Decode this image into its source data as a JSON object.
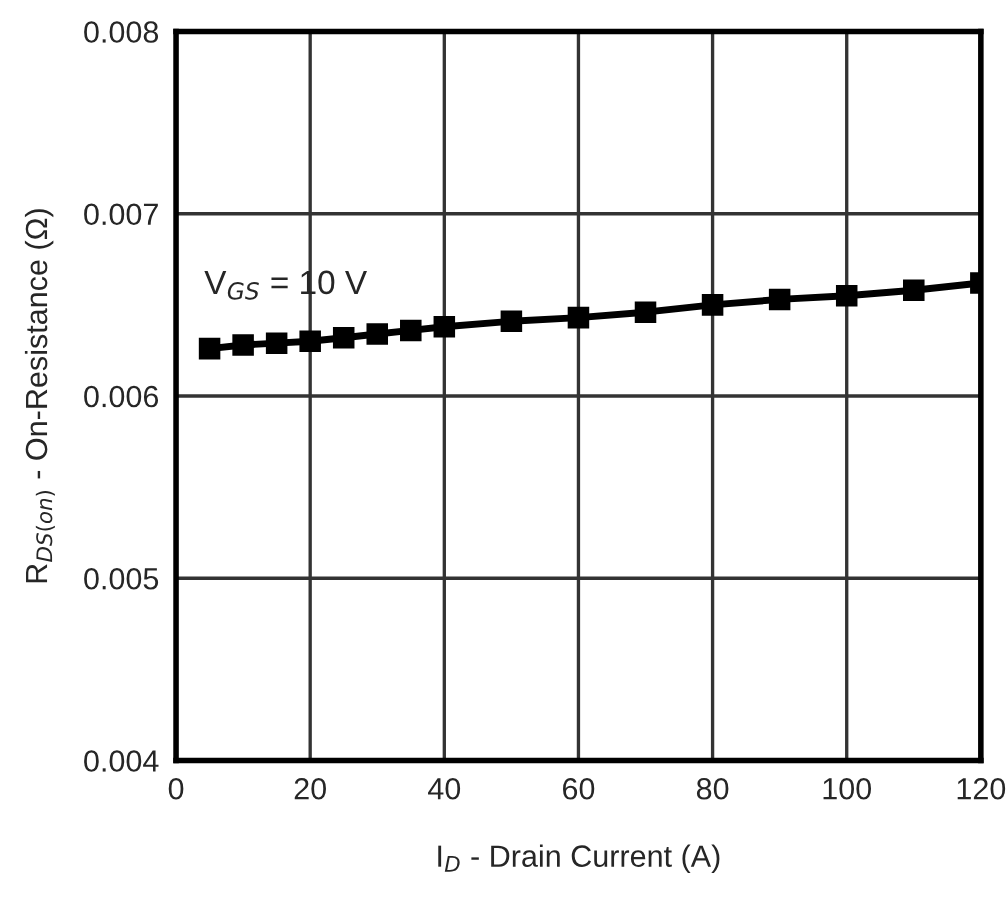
{
  "chart_data": {
    "type": "line",
    "xlabel": "I$_{D}$ - Drain Current (A)",
    "ylabel": "R$_{DS(on)}$ - On-Resistance (Ω)",
    "annotations": [
      "V$_{GS}$ = 10 V"
    ],
    "x": [
      5,
      10,
      15,
      20,
      25,
      30,
      35,
      40,
      50,
      60,
      70,
      80,
      90,
      100,
      110,
      120
    ],
    "series": [
      {
        "color": "#000000",
        "values": [
          0.00626,
          0.00628,
          0.00629,
          0.0063,
          0.00632,
          0.00634,
          0.00636,
          0.00638,
          0.00641,
          0.00643,
          0.00646,
          0.0065,
          0.00653,
          0.00655,
          0.00658,
          0.00662
        ]
      }
    ],
    "xlim": [
      0,
      120
    ],
    "xticks": [
      0,
      20,
      40,
      60,
      80,
      100,
      120
    ],
    "ylim": [
      0.004,
      0.008
    ],
    "yticks": [
      {
        "value": 0.004,
        "label": "0.004"
      },
      {
        "value": 0.005,
        "label": "0.005"
      },
      {
        "value": 0.006,
        "label": "0.006"
      },
      {
        "value": 0.007,
        "label": "0.007"
      },
      {
        "value": 0.008,
        "label": "0.008"
      }
    ],
    "grid": true,
    "marker": "square",
    "line_style": "solid",
    "legend": false
  }
}
